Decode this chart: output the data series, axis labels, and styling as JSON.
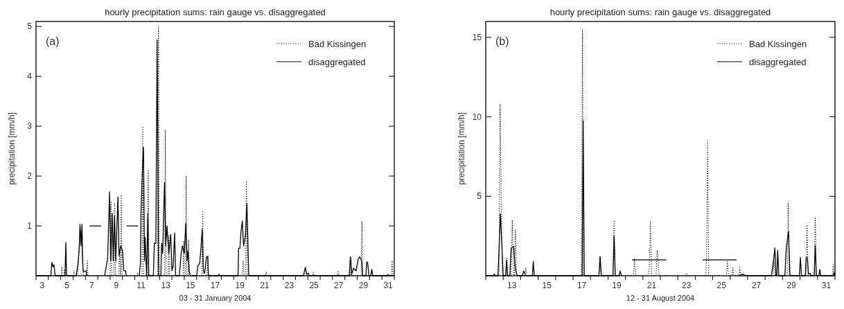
{
  "chart_data": [
    {
      "type": "line",
      "title": "hourly precipitation sums: rain gauge vs. disaggregated",
      "xlabel": "03 - 31 January 2004",
      "ylabel": "precipitation [mm/h]",
      "annotations": [
        "(a)"
      ],
      "legend": "top right",
      "xlim": [
        2.5,
        31.5
      ],
      "ylim": [
        0,
        5.1
      ],
      "yticks": [
        1,
        2,
        3,
        4,
        5
      ],
      "xticks": [
        3,
        5,
        7,
        9,
        11,
        13,
        15,
        17,
        19,
        21,
        23,
        25,
        27,
        29,
        31,
        {
          "value": 2.5,
          "label": null
        },
        {
          "value": 3.5,
          "label": null
        },
        {
          "value": 4.5,
          "label": null
        },
        {
          "value": 5.5,
          "label": null
        },
        {
          "value": 6.5,
          "label": null
        },
        {
          "value": 7.5,
          "label": null
        },
        {
          "value": 8.5,
          "label": null
        },
        {
          "value": 9.5,
          "label": null
        },
        {
          "value": 10.5,
          "label": null
        },
        {
          "value": 11.5,
          "label": null
        },
        {
          "value": 12.5,
          "label": null
        },
        {
          "value": 13.5,
          "label": null
        },
        {
          "value": 14.5,
          "label": null
        },
        {
          "value": 15.5,
          "label": null
        },
        {
          "value": 16.5,
          "label": null
        },
        {
          "value": 17.5,
          "label": null
        },
        {
          "value": 18.5,
          "label": null
        },
        {
          "value": 19.5,
          "label": null
        },
        {
          "value": 20.5,
          "label": null
        },
        {
          "value": 21.5,
          "label": null
        },
        {
          "value": 22.5,
          "label": null
        },
        {
          "value": 23.5,
          "label": null
        },
        {
          "value": 24.5,
          "label": null
        },
        {
          "value": 25.5,
          "label": null
        },
        {
          "value": 26.5,
          "label": null
        },
        {
          "value": 27.5,
          "label": null
        },
        {
          "value": 28.5,
          "label": null
        },
        {
          "value": 29.5,
          "label": null
        },
        {
          "value": 30.5,
          "label": null
        },
        {
          "value": 31.5,
          "label": null
        }
      ],
      "series": [
        {
          "name": "Bad Kissingen",
          "color": "#000000",
          "line_style": "dotted",
          "x": [
            2.5,
            4.54,
            4.59,
            4.64,
            4.75,
            4.8,
            4.85,
            5.52,
            5.57,
            5.62,
            5.85,
            6.0,
            6.13,
            6.25,
            6.35,
            6.6,
            6.65,
            6.7,
            8.5,
            8.56,
            8.62,
            8.8,
            8.87,
            8.93,
            9.2,
            9.27,
            9.33,
            9.35,
            9.4,
            9.46,
            10.65,
            10.7,
            10.75,
            11.08,
            11.14,
            11.2,
            11.52,
            11.58,
            11.64,
            12.35,
            12.41,
            12.47,
            12.91,
            12.97,
            13.03,
            13.2,
            13.25,
            13.3,
            14.4,
            14.45,
            14.5,
            14.59,
            14.65,
            14.71,
            14.8,
            14.85,
            14.9,
            15.93,
            15.99,
            16.05,
            16.35,
            16.41,
            16.47,
            19.2,
            19.27,
            19.33,
            19.46,
            19.53,
            19.6,
            21.08,
            21.14,
            21.2,
            24.9,
            24.95,
            25.0,
            26.9,
            26.95,
            27.0,
            27.95,
            28.0,
            28.05,
            28.82,
            28.88,
            28.94,
            31.27,
            31.33,
            31.39,
            31.5
          ],
          "values": [
            0,
            0,
            0.18,
            0,
            0,
            0.13,
            0,
            0,
            0.1,
            0,
            0,
            0.5,
            0.9,
            0.3,
            0,
            0,
            0.3,
            0,
            0,
            1.5,
            0,
            0,
            1.47,
            0,
            0,
            0.5,
            0,
            0,
            1.62,
            0,
            0,
            0.05,
            0,
            0,
            3.0,
            0,
            0,
            2.1,
            0,
            0,
            5.0,
            0,
            0,
            2.93,
            0,
            0,
            0.8,
            0,
            0,
            0.7,
            0,
            0,
            2.0,
            0,
            0,
            0.72,
            0,
            0,
            1.28,
            0,
            0,
            0.4,
            0,
            0,
            0.3,
            0,
            0,
            1.9,
            0,
            0,
            0.08,
            0,
            0,
            0.07,
            0,
            0,
            0.1,
            0,
            0,
            0.35,
            0,
            0,
            1.1,
            0,
            0,
            0.3,
            0,
            0
          ]
        },
        {
          "name": "disaggregated",
          "color": "#000000",
          "line_style": "solid",
          "x": [
            2.5,
            3.7,
            3.79,
            3.87,
            3.95,
            4.05,
            4.85,
            4.91,
            4.97,
            5.75,
            5.9,
            6.0,
            6.06,
            6.15,
            6.22,
            6.3,
            6.4,
            6.55,
            6.6,
            6.7,
            6.84,
            7.77,
            7.9,
            8.05,
            8.3,
            8.45,
            8.55,
            8.67,
            8.75,
            8.85,
            8.95,
            9.13,
            9.22,
            9.35,
            9.5,
            9.6,
            9.75,
            9.8,
            9.82,
            9.83,
            10.76,
            10.8,
            10.85,
            10.95,
            11.0,
            11.13,
            11.2,
            11.28,
            11.33,
            11.45,
            11.55,
            11.62,
            12.0,
            12.08,
            12.2,
            12.3,
            12.42,
            12.6,
            12.67,
            12.75,
            12.9,
            13.0,
            13.1,
            13.25,
            13.4,
            13.5,
            13.6,
            13.72,
            13.8,
            14.1,
            14.25,
            14.35,
            14.5,
            14.62,
            14.72,
            14.8,
            14.9,
            15.0,
            15.5,
            15.6,
            15.75,
            15.85,
            15.95,
            16.05,
            16.15,
            16.3,
            16.4,
            16.45,
            17.25,
            17.3,
            17.35,
            18.85,
            18.9,
            19.0,
            19.1,
            19.2,
            19.3,
            19.45,
            19.57,
            19.72,
            24.15,
            24.3,
            24.4,
            24.55,
            24.6,
            27.85,
            27.95,
            28.05,
            28.2,
            28.4,
            28.6,
            28.7,
            28.85,
            28.95,
            29.2,
            29.27,
            29.35,
            29.45,
            29.6,
            29.68,
            29.75,
            30.95,
            31.0,
            31.05,
            31.5
          ],
          "values": [
            0,
            0,
            0.27,
            0.18,
            0.22,
            0,
            0,
            0.67,
            0,
            0,
            0.25,
            0.6,
            1.03,
            0.6,
            1.03,
            0.1,
            0.08,
            0.1,
            0,
            null,
            1,
            1,
            null,
            0,
            0.35,
            1.68,
            0.3,
            1.25,
            0.3,
            1.2,
            0.3,
            1.58,
            0.4,
            0.6,
            0.5,
            0.1,
            0.1,
            0,
            null,
            1,
            1,
            null,
            0,
            0.25,
            1.3,
            2.28,
            2.58,
            0.3,
            0.77,
            0,
            1.25,
            0,
            0,
            0.65,
            0.65,
            4.73,
            0,
            0,
            0.65,
            0.45,
            1.87,
            0.6,
            1.0,
            0.45,
            0.83,
            0.1,
            0.2,
            0.86,
            0,
            0,
            0.45,
            0.6,
            0.45,
            1.05,
            0.3,
            0.5,
            0.1,
            0,
            0,
            0.2,
            0.25,
            0.55,
            0.93,
            0.1,
            0.05,
            0.38,
            0.38,
            0,
            0,
            0.03,
            0,
            0,
            0.55,
            0.55,
            0.9,
            1.1,
            0.6,
            0.8,
            1.45,
            0,
            0,
            0.17,
            0.03,
            0.05,
            0,
            0,
            0.38,
            0.03,
            0.15,
            0.1,
            0.35,
            0.38,
            0.3,
            0,
            0,
            0.28,
            0.25,
            0,
            0,
            0.13,
            0,
            0,
            0.03,
            0,
            0
          ]
        }
      ]
    },
    {
      "type": "line",
      "title": "hourly precipitation sums: rain gauge vs. disaggregated",
      "xlabel": "12 - 31 August 2004",
      "ylabel": "precipitation [mm/h]",
      "annotations": [
        "(b)"
      ],
      "legend": "top right",
      "xlim": [
        11.5,
        31.5
      ],
      "ylim": [
        0,
        16
      ],
      "yticks": [
        5,
        10,
        15
      ],
      "xticks": [
        13,
        15,
        17,
        19,
        21,
        23,
        25,
        27,
        29,
        31,
        {
          "value": 11.5,
          "label": null
        },
        {
          "value": 12.5,
          "label": null
        },
        {
          "value": 13.5,
          "label": null
        },
        {
          "value": 14.5,
          "label": null
        },
        {
          "value": 15.5,
          "label": null
        },
        {
          "value": 16.5,
          "label": null
        },
        {
          "value": 17.5,
          "label": null
        },
        {
          "value": 18.5,
          "label": null
        },
        {
          "value": 19.5,
          "label": null
        },
        {
          "value": 20.5,
          "label": null
        },
        {
          "value": 21.5,
          "label": null
        },
        {
          "value": 22.5,
          "label": null
        },
        {
          "value": 23.5,
          "label": null
        },
        {
          "value": 24.5,
          "label": null
        },
        {
          "value": 25.5,
          "label": null
        },
        {
          "value": 26.5,
          "label": null
        },
        {
          "value": 27.5,
          "label": null
        },
        {
          "value": 28.5,
          "label": null
        },
        {
          "value": 29.5,
          "label": null
        },
        {
          "value": 30.5,
          "label": null
        },
        {
          "value": 31.5,
          "label": null
        }
      ],
      "series": [
        {
          "name": "Bad Kissingen",
          "color": "#000000",
          "line_style": "dotted",
          "x": [
            11.5,
            12.26,
            12.32,
            12.45,
            12.66,
            12.71,
            12.76,
            12.96,
            13.02,
            13.1,
            13.14,
            13.2,
            13.26,
            13.74,
            13.8,
            13.86,
            16.98,
            17.04,
            17.1,
            17.98,
            18.04,
            18.1,
            18.79,
            18.85,
            18.91,
            19.96,
            20.02,
            20.08,
            20.8,
            20.87,
            20.93,
            21.0,
            21.25,
            21.32,
            21.38,
            21.44,
            22.95,
            23.0,
            23.05,
            24.1,
            24.15,
            24.2,
            24.27,
            25.28,
            25.34,
            25.4,
            25.6,
            25.65,
            25.7,
            26.0,
            26.05,
            26.1,
            27.94,
            28.0,
            28.06,
            28.76,
            28.82,
            28.88,
            29.84,
            29.9,
            29.96,
            30.31,
            30.37,
            30.43,
            31.34,
            31.4,
            31.46,
            31.5
          ],
          "values": [
            0,
            0,
            10.8,
            0,
            0,
            1.1,
            0,
            0,
            3.5,
            0,
            0,
            2.9,
            0,
            0,
            0.5,
            0,
            0,
            15.5,
            0,
            0,
            1.25,
            0,
            0,
            3.5,
            0,
            0,
            1.1,
            0,
            0,
            0.5,
            3.4,
            0,
            0,
            1.6,
            0.8,
            0,
            0,
            0.15,
            0,
            0,
            1.3,
            8.5,
            0,
            0,
            0.9,
            0,
            0,
            0.5,
            0,
            0,
            0.5,
            0,
            0,
            1.0,
            0,
            0,
            4.6,
            0,
            0,
            3.2,
            0,
            0,
            3.7,
            0,
            0,
            0.7,
            0,
            0
          ]
        },
        {
          "name": "disaggregated",
          "color": "#000000",
          "line_style": "solid",
          "x": [
            11.5,
            11.93,
            11.98,
            12.05,
            12.2,
            12.34,
            12.5,
            12.64,
            12.69,
            12.75,
            12.88,
            12.95,
            13.02,
            13.1,
            13.17,
            13.22,
            13.3,
            13.6,
            13.67,
            13.72,
            13.78,
            14.17,
            14.22,
            14.28,
            17.02,
            17.08,
            17.14,
            17.98,
            18.05,
            18.12,
            18.79,
            18.85,
            18.92,
            19.13,
            19.2,
            19.27,
            19.8,
            19.87,
            21.84,
            21.9,
            23.85,
            23.91,
            25.86,
            25.9,
            26.0,
            26.2,
            26.4,
            27.85,
            27.93,
            28.06,
            28.12,
            28.17,
            28.22,
            28.28,
            28.63,
            28.71,
            28.84,
            28.92,
            29.46,
            29.52,
            29.58,
            29.8,
            29.85,
            29.92,
            29.98,
            30.08,
            30.14,
            30.31,
            30.37,
            30.43,
            30.58,
            30.63,
            30.68,
            31.4,
            31.45,
            31.5
          ],
          "values": [
            0,
            0,
            0.1,
            0,
            0,
            3.9,
            0,
            0,
            0.95,
            0,
            0,
            1.7,
            1.8,
            1.85,
            0.7,
            0.3,
            0,
            0,
            0.3,
            0.2,
            0,
            0,
            0.9,
            0,
            0,
            9.75,
            0,
            0,
            1.2,
            0,
            0,
            2.5,
            0,
            0,
            0.3,
            0,
            null,
            1,
            1,
            null,
            null,
            1,
            1,
            null,
            0,
            0.1,
            0,
            0,
            0.5,
            1.75,
            0,
            0,
            1.6,
            0,
            0,
            1.75,
            2.8,
            0,
            0,
            1.15,
            0,
            0,
            1.15,
            1.1,
            0.1,
            0.15,
            0,
            0,
            1.9,
            0,
            0,
            0.4,
            0,
            0,
            0.2,
            0
          ]
        }
      ]
    }
  ]
}
